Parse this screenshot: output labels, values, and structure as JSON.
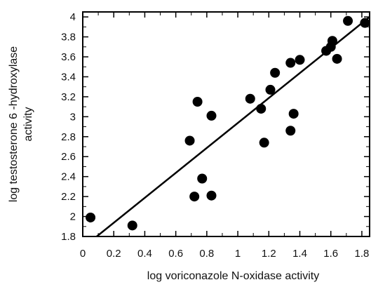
{
  "chart_data": {
    "type": "scatter",
    "title": "",
    "xlabel": "log voriconazole N-oxidase activity",
    "ylabel_line1": "log testosterone 6  -hydroxylase",
    "ylabel_line2": "activity",
    "xlim": [
      0,
      1.85
    ],
    "ylim": [
      1.8,
      4.05
    ],
    "x_ticks": [
      "0",
      "0.2",
      "0.4",
      "0.6",
      "0.8",
      "1",
      "1.2",
      "1.4",
      "1.6",
      "1.8"
    ],
    "y_ticks": [
      "1.8",
      "2",
      "2.2",
      "2.4",
      "2.6",
      "2.8",
      "3",
      "3.2",
      "3.4",
      "3.6",
      "3.8",
      "4"
    ],
    "grid": false,
    "points": [
      {
        "x": 0.05,
        "y": 1.99
      },
      {
        "x": 0.32,
        "y": 1.91
      },
      {
        "x": 0.69,
        "y": 2.76
      },
      {
        "x": 0.72,
        "y": 2.2
      },
      {
        "x": 0.74,
        "y": 3.15
      },
      {
        "x": 0.77,
        "y": 2.38
      },
      {
        "x": 0.83,
        "y": 2.21
      },
      {
        "x": 0.83,
        "y": 3.01
      },
      {
        "x": 1.08,
        "y": 3.18
      },
      {
        "x": 1.15,
        "y": 3.08
      },
      {
        "x": 1.17,
        "y": 2.74
      },
      {
        "x": 1.21,
        "y": 3.27
      },
      {
        "x": 1.24,
        "y": 3.44
      },
      {
        "x": 1.34,
        "y": 2.86
      },
      {
        "x": 1.34,
        "y": 3.54
      },
      {
        "x": 1.36,
        "y": 3.03
      },
      {
        "x": 1.4,
        "y": 3.57
      },
      {
        "x": 1.57,
        "y": 3.66
      },
      {
        "x": 1.6,
        "y": 3.7
      },
      {
        "x": 1.61,
        "y": 3.76
      },
      {
        "x": 1.64,
        "y": 3.58
      },
      {
        "x": 1.71,
        "y": 3.96
      },
      {
        "x": 1.82,
        "y": 3.94
      }
    ],
    "regression_line": {
      "x1": 0.09,
      "y1": 1.8,
      "x2": 1.85,
      "y2": 4.0
    }
  }
}
